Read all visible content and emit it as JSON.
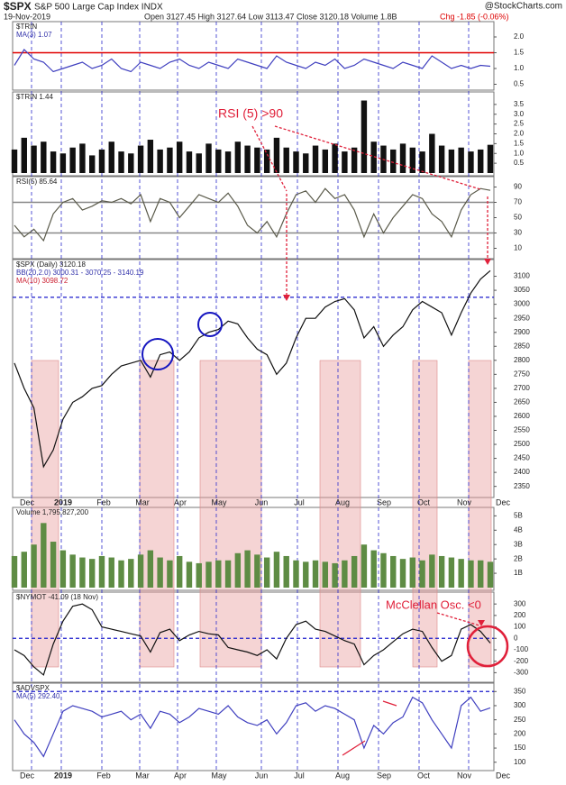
{
  "header": {
    "title": "$SPX",
    "subtitle": "S&P 500 Large Cap Index INDX",
    "credit": "@StockCharts.com",
    "date": "19-Nov-2019",
    "quote": "Open 3127.45 High 3127.64 Low 3113.47 Close 3120.18 Volume 1.8B",
    "change": "Chg -1.85 (-0.06%)"
  },
  "months": [
    "Dec",
    "2019",
    "Feb",
    "Mar",
    "Apr",
    "May",
    "Jun",
    "Jul",
    "Aug",
    "Sep",
    "Oct",
    "Nov",
    "Dec"
  ],
  "annotations": [
    "RSI (5) >90",
    "McClellan Osc. <0"
  ],
  "chart_data": [
    {
      "type": "line",
      "legend": [
        {
          "text": "$TRIN",
          "color": "#222"
        },
        {
          "text": "MA(3) 1.07",
          "color": "#3333aa"
        }
      ],
      "color": "#3f3fbf",
      "values": [
        1.1,
        1.6,
        1.3,
        1.2,
        0.9,
        1.0,
        1.1,
        1.2,
        1.0,
        1.1,
        1.3,
        1.0,
        0.9,
        1.2,
        1.1,
        1.0,
        1.2,
        1.3,
        1.1,
        1.0,
        1.2,
        1.1,
        1.0,
        1.3,
        1.2,
        1.1,
        1.0,
        1.4,
        1.2,
        1.1,
        1.0,
        1.2,
        1.1,
        1.3,
        1.0,
        1.1,
        1.3,
        1.2,
        1.1,
        1.0,
        1.2,
        1.1,
        1.0,
        1.4,
        1.2,
        1.0,
        1.1,
        1.0,
        1.1,
        1.07
      ],
      "ylim": [
        0.4,
        2.4
      ],
      "yticks": [
        0.5,
        {
          "value": 1,
          "label": "1.0"
        },
        1.5,
        {
          "value": 2,
          "label": "2.0"
        }
      ],
      "ref_lines": [
        {
          "value": 1.5,
          "color": "#e00000"
        }
      ]
    },
    {
      "type": "bar",
      "legend": [
        {
          "text": "$TRIN 1.44",
          "color": "#222"
        }
      ],
      "color": "#111111",
      "values": [
        1.2,
        1.8,
        1.4,
        1.6,
        1.1,
        1.0,
        1.3,
        1.5,
        0.9,
        1.2,
        1.6,
        1.1,
        1.0,
        1.4,
        1.7,
        1.2,
        1.3,
        1.6,
        1.1,
        1.0,
        1.5,
        1.2,
        1.1,
        1.6,
        1.4,
        1.3,
        1.2,
        1.8,
        1.3,
        1.1,
        1.0,
        1.4,
        1.2,
        1.5,
        1.1,
        1.3,
        3.7,
        1.6,
        1.4,
        1.2,
        1.5,
        1.3,
        1.1,
        2.0,
        1.4,
        1.2,
        1.3,
        1.1,
        1.2,
        1.44
      ],
      "ylim": [
        0,
        4
      ],
      "yticks": [
        0.5,
        {
          "value": 1,
          "label": "1.0"
        },
        1.5,
        {
          "value": 2,
          "label": "2.0"
        },
        2.5,
        {
          "value": 3,
          "label": "3.0"
        },
        3.5
      ]
    },
    {
      "type": "line",
      "legend": [
        {
          "text": "RSI(5) 85.64",
          "color": "#222"
        }
      ],
      "color": "#5a5a4a",
      "values": [
        40,
        25,
        35,
        20,
        55,
        70,
        75,
        60,
        65,
        72,
        70,
        75,
        68,
        80,
        45,
        75,
        70,
        50,
        65,
        80,
        75,
        70,
        82,
        65,
        40,
        30,
        45,
        25,
        55,
        80,
        85,
        70,
        88,
        75,
        80,
        60,
        25,
        55,
        30,
        50,
        65,
        80,
        75,
        55,
        45,
        25,
        60,
        80,
        88,
        85.64
      ],
      "ylim": [
        0,
        100
      ],
      "yticks": [
        10,
        30,
        50,
        70,
        90
      ],
      "ref_lines": [
        {
          "value": 70,
          "color": "#888888"
        },
        {
          "value": 30,
          "color": "#888888"
        }
      ]
    },
    {
      "type": "line",
      "legend": [
        {
          "text": "$SPX (Daily) 3120.18",
          "color": "#222"
        },
        {
          "text": "BB(20,2.0) 3000.31 - 3070.25 - 3140.19",
          "color": "#3333aa"
        },
        {
          "text": "MA(10) 3098.72",
          "color": "#cc2233"
        }
      ],
      "color": "#111111",
      "values": [
        2790,
        2700,
        2630,
        2420,
        2480,
        2590,
        2650,
        2670,
        2700,
        2710,
        2750,
        2780,
        2790,
        2800,
        2740,
        2820,
        2830,
        2800,
        2830,
        2880,
        2900,
        2910,
        2940,
        2930,
        2880,
        2840,
        2820,
        2750,
        2790,
        2880,
        2950,
        2950,
        2990,
        3010,
        3020,
        2980,
        2880,
        2920,
        2850,
        2890,
        2920,
        2980,
        3010,
        2990,
        2970,
        2890,
        2970,
        3040,
        3090,
        3120
      ],
      "ylim": [
        2320,
        3150
      ],
      "yticks": [
        2350,
        2400,
        2450,
        2500,
        2550,
        2600,
        2650,
        2700,
        2750,
        2800,
        2850,
        2900,
        2950,
        3000,
        3050,
        3100
      ],
      "ref_lines": [
        {
          "value": 3025,
          "color": "#1a1acc",
          "dashed": true
        }
      ]
    },
    {
      "type": "bar",
      "legend": [
        {
          "text": "Volume 1,795,827,200",
          "color": "#222"
        }
      ],
      "color": "#5e8c44",
      "values": [
        2.2,
        2.5,
        3.0,
        4.5,
        3.2,
        2.6,
        2.3,
        2.1,
        2.0,
        2.2,
        2.1,
        1.9,
        2.0,
        2.3,
        2.6,
        2.1,
        1.9,
        2.2,
        1.8,
        1.7,
        1.8,
        1.9,
        1.9,
        2.4,
        2.6,
        2.3,
        2.1,
        2.5,
        2.2,
        1.9,
        1.8,
        1.9,
        1.8,
        1.7,
        1.9,
        2.2,
        3.0,
        2.6,
        2.4,
        2.2,
        2.0,
        2.1,
        1.9,
        2.3,
        2.2,
        2.1,
        2.0,
        1.9,
        1.9,
        1.8
      ],
      "ylim": [
        0,
        5.4
      ],
      "yticks": [
        {
          "value": 1,
          "label": "1B"
        },
        {
          "value": 2,
          "label": "2B"
        },
        {
          "value": 3,
          "label": "3B"
        },
        {
          "value": 4,
          "label": "4B"
        },
        {
          "value": 5,
          "label": "5B"
        }
      ]
    },
    {
      "type": "line",
      "legend": [
        {
          "text": "$NYMOT -41.09 (18 Nov)",
          "color": "#222"
        }
      ],
      "color": "#111111",
      "values": [
        -100,
        -150,
        -250,
        -320,
        -50,
        150,
        280,
        300,
        250,
        100,
        80,
        60,
        40,
        20,
        -120,
        50,
        80,
        -20,
        30,
        60,
        40,
        30,
        -80,
        -100,
        -120,
        -150,
        -100,
        -180,
        0,
        120,
        150,
        80,
        60,
        20,
        -20,
        -50,
        -230,
        -150,
        -100,
        -30,
        40,
        80,
        60,
        -80,
        -200,
        -150,
        80,
        120,
        60,
        -41.09
      ],
      "ylim": [
        -360,
        380
      ],
      "yticks": [
        -300,
        -200,
        -100,
        0,
        100,
        200,
        300
      ],
      "ref_lines": [
        {
          "value": 0,
          "color": "#1a1acc",
          "dashed": true
        }
      ]
    },
    {
      "type": "line",
      "legend": [
        {
          "text": "$ADVSPX",
          "color": "#222"
        },
        {
          "text": "MA(5) 292.40",
          "color": "#3333aa"
        }
      ],
      "color": "#3f3fbf",
      "values": [
        250,
        200,
        170,
        120,
        200,
        280,
        300,
        290,
        280,
        260,
        270,
        280,
        250,
        270,
        220,
        280,
        270,
        240,
        260,
        290,
        280,
        270,
        300,
        260,
        240,
        230,
        250,
        200,
        240,
        300,
        310,
        280,
        300,
        290,
        270,
        250,
        150,
        230,
        200,
        240,
        260,
        330,
        310,
        250,
        200,
        150,
        300,
        330,
        280,
        292.4
      ],
      "ylim": [
        80,
        370
      ],
      "yticks": [
        100,
        150,
        200,
        250,
        300,
        350
      ],
      "ref_lines": [
        {
          "value": 350,
          "color": "#1a1acc",
          "dashed": true
        }
      ]
    }
  ]
}
